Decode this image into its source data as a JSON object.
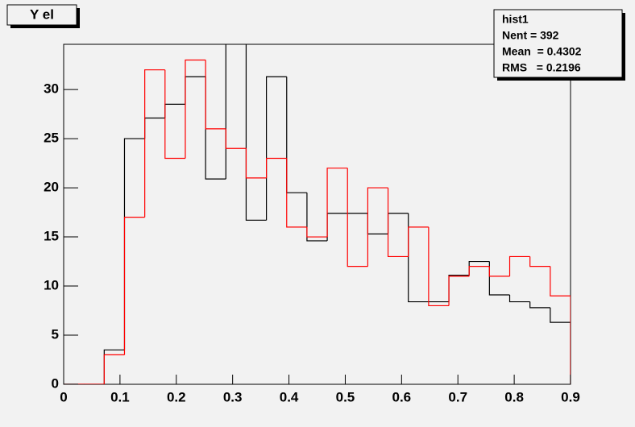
{
  "chart_data": {
    "type": "histogram",
    "title": "Y el",
    "bins": [
      0,
      0.036,
      0.072,
      0.108,
      0.144,
      0.18,
      0.216,
      0.252,
      0.288,
      0.324,
      0.36,
      0.396,
      0.432,
      0.468,
      0.504,
      0.54,
      0.576,
      0.612,
      0.648,
      0.684,
      0.72,
      0.756,
      0.792,
      0.828,
      0.864,
      0.9
    ],
    "series": [
      {
        "color": "#000000",
        "values": [
          0,
          0,
          3.5,
          25.0,
          27.1,
          28.5,
          31.3,
          20.9,
          36,
          16.7,
          31.3,
          19.5,
          14.6,
          17.4,
          17.4,
          15.3,
          17.4,
          8.4,
          8.4,
          11.1,
          12.5,
          9.1,
          8.4,
          7.8,
          6.3
        ]
      },
      {
        "color": "#ff0000",
        "values": [
          0,
          0,
          3,
          17,
          32,
          23,
          33,
          26,
          24,
          21,
          23,
          16,
          15,
          22,
          12,
          20,
          13,
          16,
          8,
          11,
          12,
          11,
          13,
          12,
          9
        ]
      }
    ],
    "xlim": [
      0,
      0.9
    ],
    "xticks": [
      0,
      0.1,
      0.2,
      0.3,
      0.4,
      0.5,
      0.6,
      0.7,
      0.8,
      0.9
    ],
    "ylim": [
      0,
      34.6
    ],
    "yticks": [
      0,
      5,
      10,
      15,
      20,
      25,
      30
    ],
    "stats": {
      "title": "hist1",
      "entries": [
        "Nent = 392",
        "Mean  = 0.4302",
        "RMS   = 0.2196"
      ]
    }
  }
}
